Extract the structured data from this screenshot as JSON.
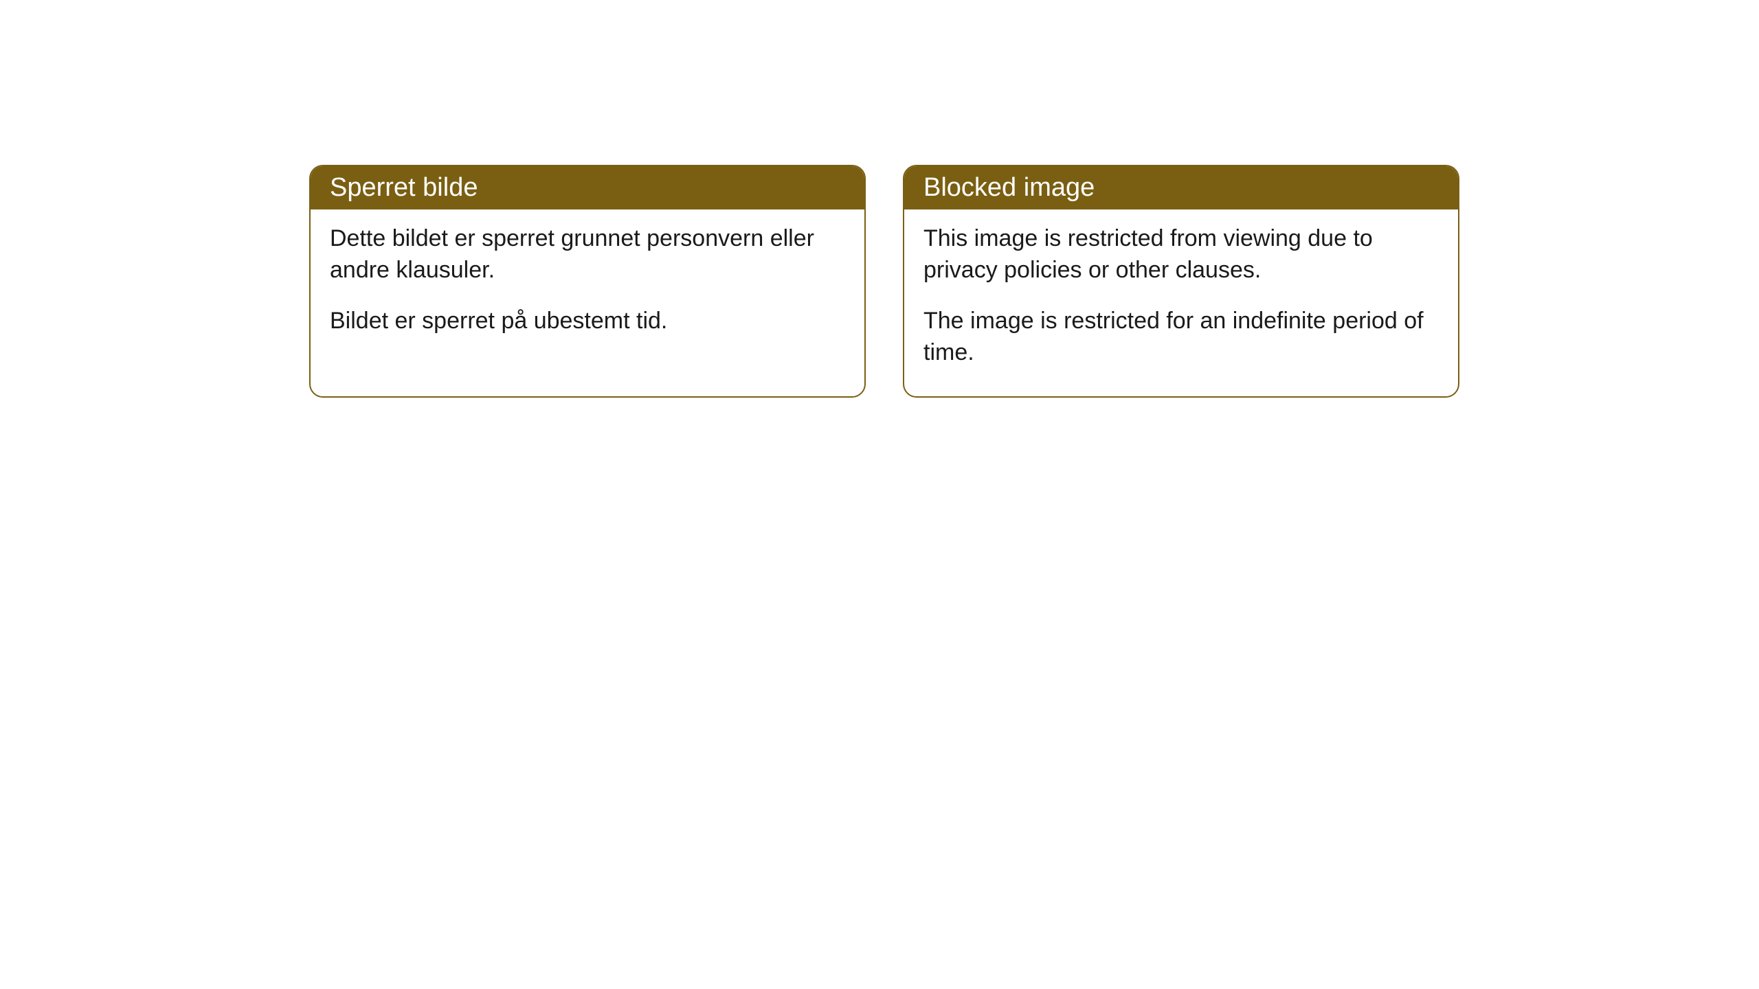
{
  "cards": [
    {
      "title": "Sperret bilde",
      "paragraph1": "Dette bildet er sperret grunnet personvern eller andre klausuler.",
      "paragraph2": "Bildet er sperret på ubestemt tid."
    },
    {
      "title": "Blocked image",
      "paragraph1": "This image is restricted from viewing due to privacy policies or other clauses.",
      "paragraph2": "The image is restricted for an indefinite period of time."
    }
  ],
  "styling": {
    "header_bg_color": "#7a5f13",
    "header_text_color": "#ffffff",
    "body_text_color": "#1a1a1a",
    "border_color": "#7a5f13",
    "background_color": "#ffffff",
    "border_radius": 20,
    "title_fontsize": 38,
    "body_fontsize": 34
  }
}
